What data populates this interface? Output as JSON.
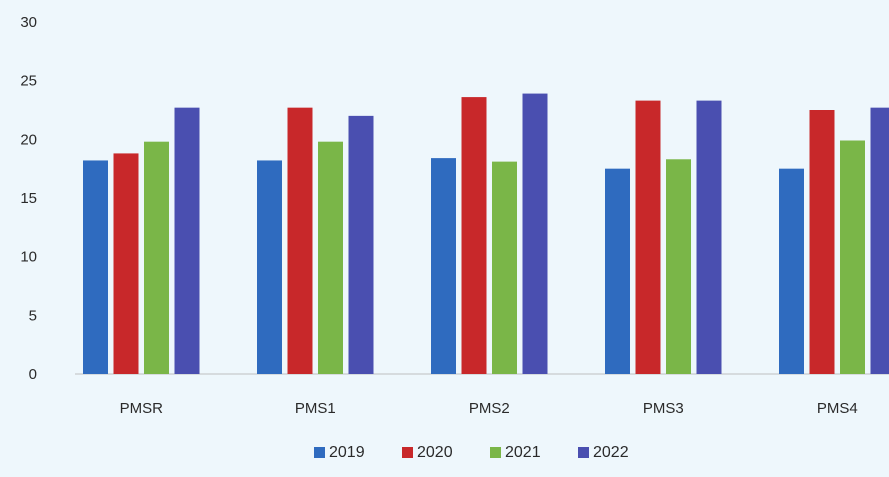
{
  "chart_data": {
    "type": "bar",
    "categories": [
      "PMSR",
      "PMS1",
      "PMS2",
      "PMS3",
      "PMS4"
    ],
    "series": [
      {
        "name": "2019",
        "color": "#2f6bbf",
        "values": [
          18.2,
          18.2,
          18.4,
          17.5,
          17.5
        ]
      },
      {
        "name": "2020",
        "color": "#c8282a",
        "values": [
          18.8,
          22.7,
          23.6,
          23.3,
          22.5
        ]
      },
      {
        "name": "2021",
        "color": "#7ab648",
        "values": [
          19.8,
          19.8,
          18.1,
          18.3,
          19.9
        ]
      },
      {
        "name": "2022",
        "color": "#4a4fb0",
        "values": [
          22.7,
          22.0,
          23.9,
          23.3,
          22.7
        ]
      }
    ],
    "y_ticks": [
      "0",
      "5",
      "10",
      "15",
      "20",
      "25",
      "30"
    ],
    "ylim": [
      0,
      30
    ],
    "grid": false,
    "legend_position": "bottom"
  }
}
